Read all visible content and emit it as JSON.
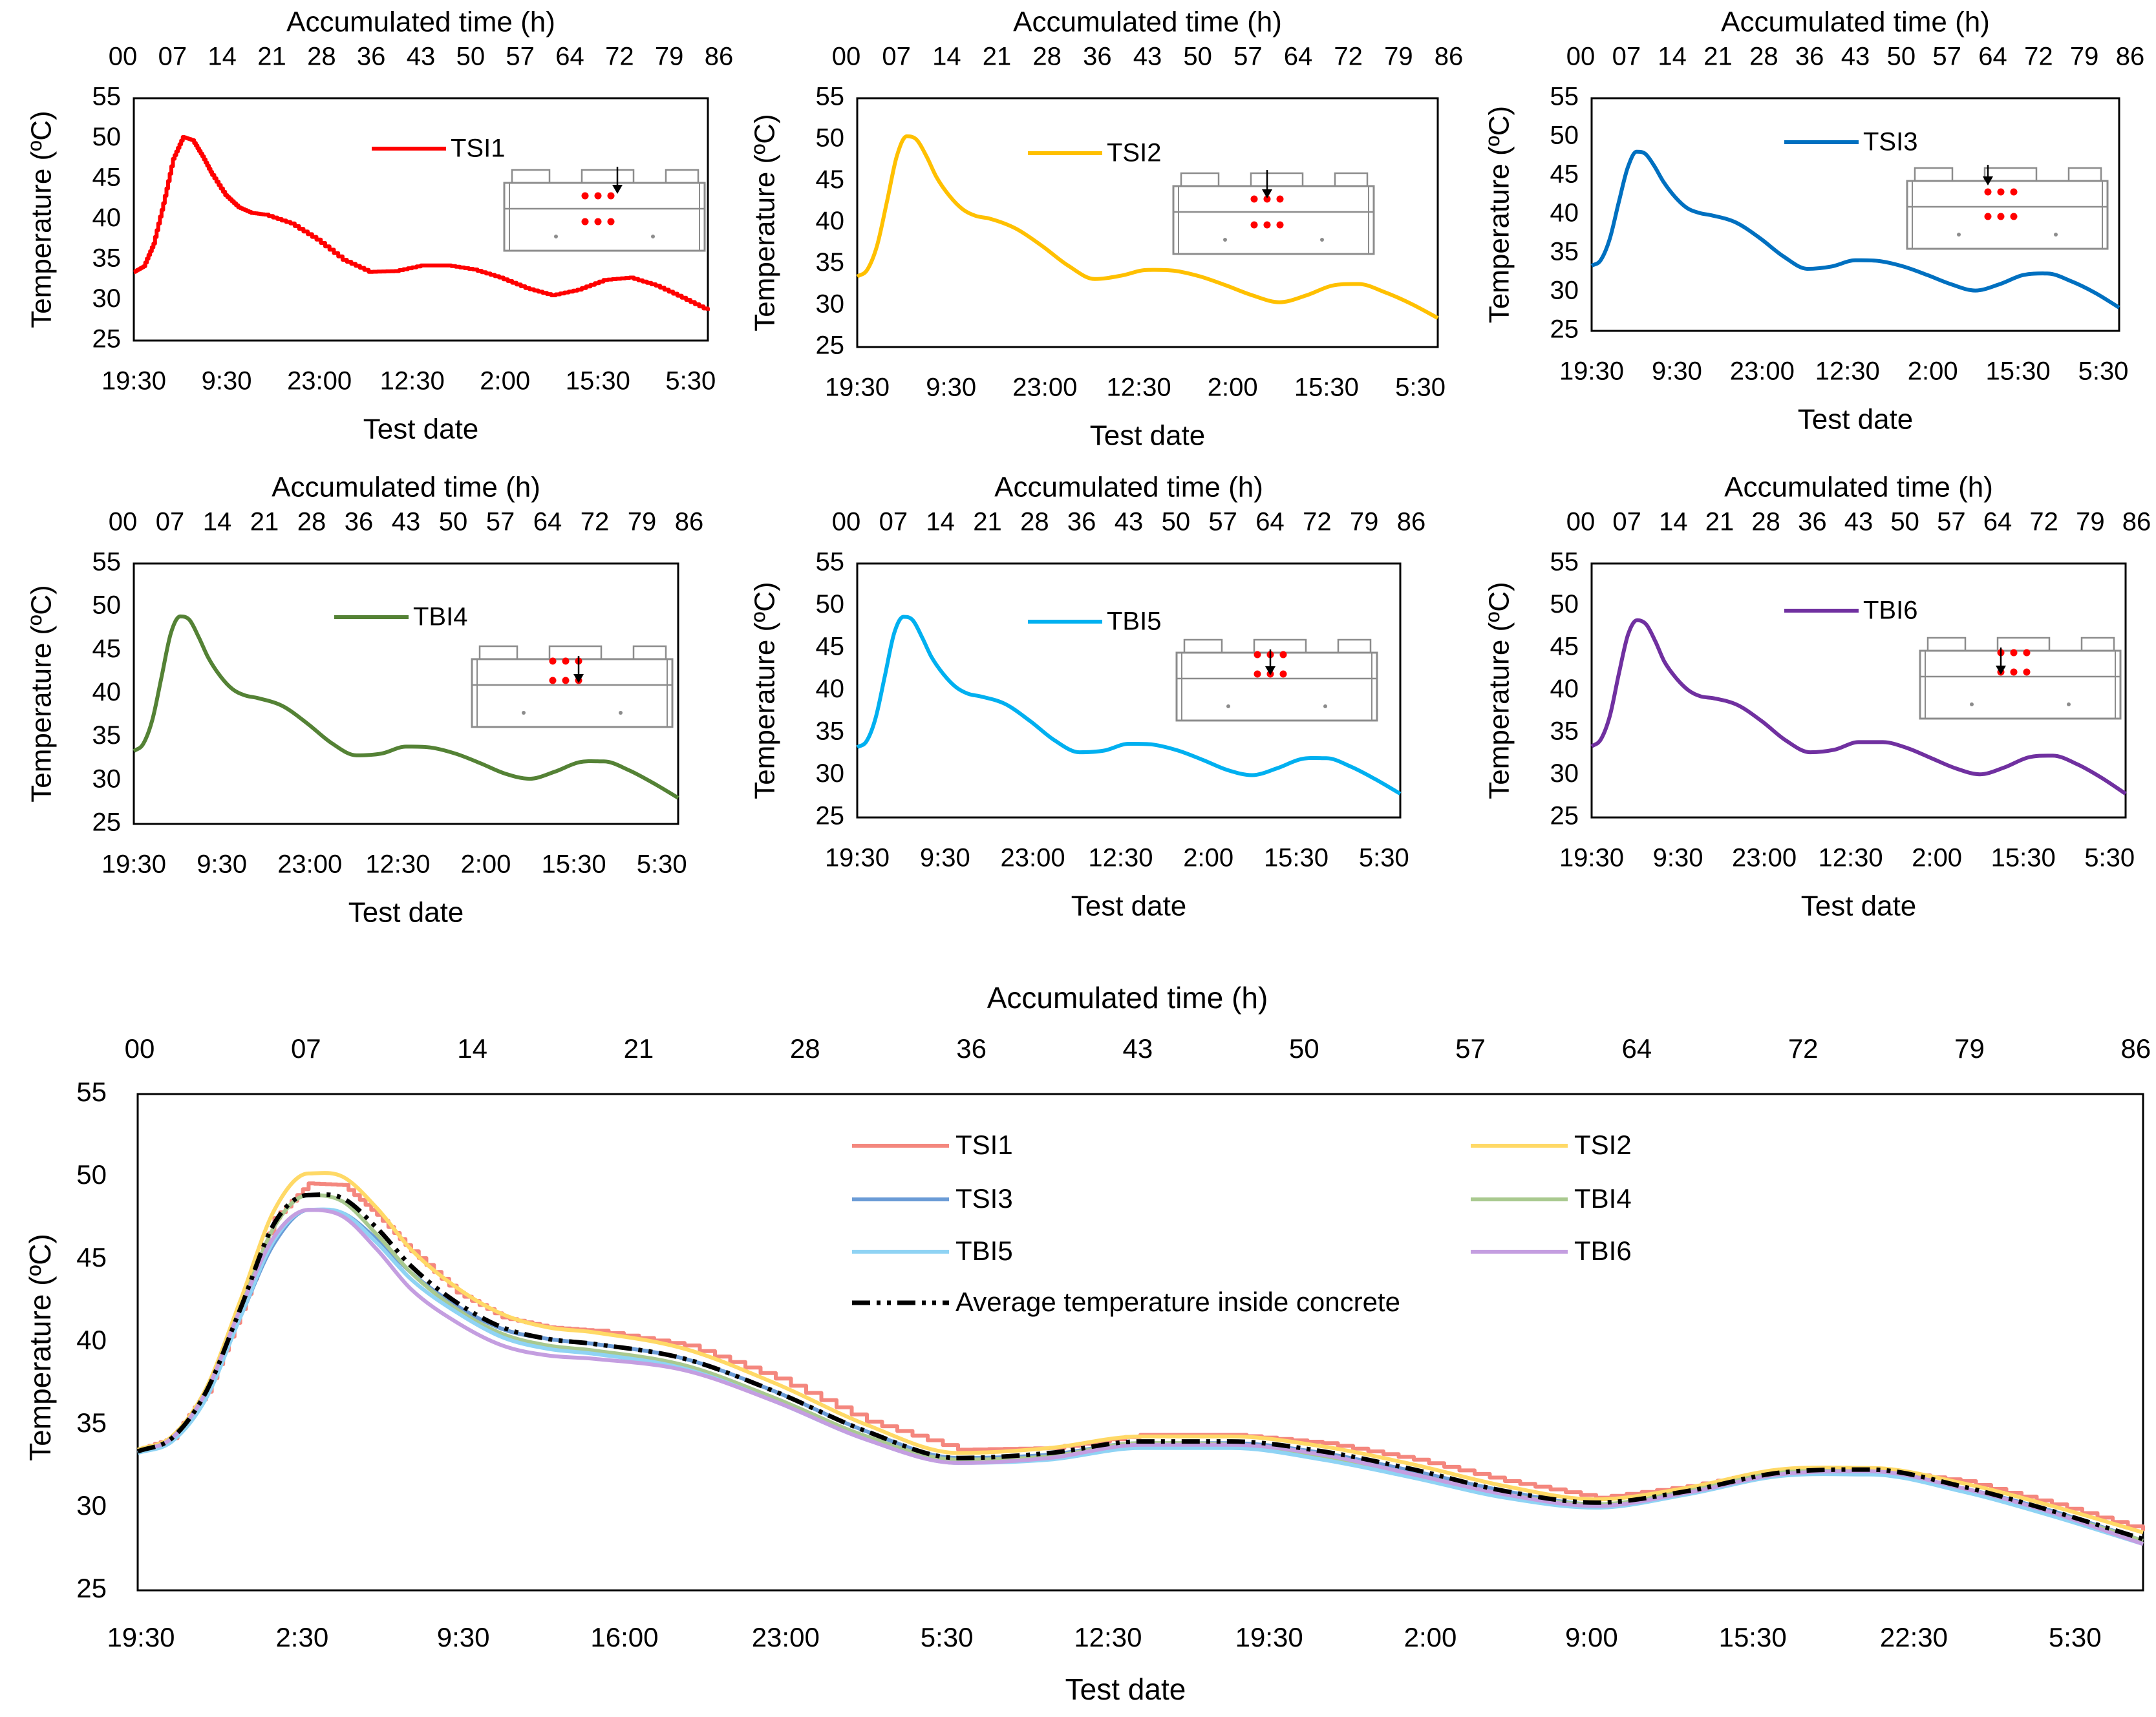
{
  "small_panel_labels": {
    "top_axis": "Accumulated time (h)",
    "y_axis": "Temperature (ºC)",
    "x_axis": "Test date"
  },
  "chart_data": [
    {
      "type": "line",
      "id": "p1",
      "legend": "TSI1",
      "color": "#ff0000",
      "stepped": true,
      "ylim": [
        25,
        55
      ],
      "yticks": [
        25,
        30,
        35,
        40,
        45,
        50,
        55
      ],
      "top_ticks": [
        "00",
        "07",
        "14",
        "21",
        "28",
        "36",
        "43",
        "50",
        "57",
        "64",
        "72",
        "79",
        "86"
      ],
      "bottom_ticks": [
        "19:30",
        "9:30",
        "23:00",
        "12:30",
        "2:00",
        "15:30",
        "5:30"
      ],
      "x": [
        0,
        1.5,
        3,
        4.5,
        6,
        7.5,
        9,
        10.5,
        12,
        14,
        16,
        18,
        20,
        24,
        28,
        32,
        36,
        40,
        44,
        48,
        52,
        56,
        60,
        64,
        68,
        72,
        76,
        80,
        84,
        88
      ],
      "y": [
        33.5,
        34.2,
        37,
        42,
        47.5,
        50.2,
        49.8,
        47.8,
        45.5,
        43,
        41.5,
        40.8,
        40.6,
        39.5,
        37.5,
        35,
        33.5,
        33.6,
        34.3,
        34.3,
        33.8,
        32.8,
        31.5,
        30.6,
        31.3,
        32.5,
        32.8,
        31.8,
        30.3,
        28.7
      ]
    },
    {
      "type": "line",
      "id": "p2",
      "legend": "TSI2",
      "color": "#ffc000",
      "ylim": [
        25,
        55
      ],
      "yticks": [
        25,
        30,
        35,
        40,
        45,
        50,
        55
      ],
      "top_ticks": [
        "00",
        "07",
        "14",
        "21",
        "28",
        "36",
        "43",
        "50",
        "57",
        "64",
        "72",
        "79",
        "86"
      ],
      "bottom_ticks": [
        "19:30",
        "9:30",
        "23:00",
        "12:30",
        "2:00",
        "15:30",
        "5:30"
      ],
      "x": [
        0,
        1.5,
        3,
        4.5,
        6,
        7.5,
        9,
        10.5,
        12,
        14,
        16,
        18,
        20,
        24,
        28,
        32,
        36,
        40,
        44,
        48,
        52,
        56,
        60,
        64,
        68,
        72,
        76,
        80,
        84,
        88
      ],
      "y": [
        33.5,
        34.3,
        37.2,
        42.5,
        48,
        50.4,
        50,
        48,
        45.5,
        43.2,
        41.6,
        40.8,
        40.5,
        39.3,
        37.2,
        34.8,
        33.2,
        33.6,
        34.3,
        34.2,
        33.5,
        32.4,
        31.2,
        30.4,
        31.2,
        32.4,
        32.6,
        31.6,
        30.2,
        28.5
      ]
    },
    {
      "type": "line",
      "id": "p3",
      "legend": "TSI3",
      "color": "#0070c0",
      "ylim": [
        25,
        55
      ],
      "yticks": [
        25,
        30,
        35,
        40,
        45,
        50,
        55
      ],
      "top_ticks": [
        "00",
        "07",
        "14",
        "21",
        "28",
        "36",
        "43",
        "50",
        "57",
        "64",
        "72",
        "79",
        "86"
      ],
      "bottom_ticks": [
        "19:30",
        "9:30",
        "23:00",
        "12:30",
        "2:00",
        "15:30",
        "5:30"
      ],
      "x": [
        0,
        1.5,
        3,
        4.5,
        6,
        7.5,
        9,
        10.5,
        12,
        14,
        16,
        18,
        20,
        24,
        28,
        32,
        36,
        40,
        44,
        48,
        52,
        56,
        60,
        64,
        68,
        72,
        76,
        80,
        84,
        88
      ],
      "y": [
        33.4,
        34.1,
        36.8,
        41.5,
        46,
        48.1,
        47.8,
        46.2,
        44.2,
        42.2,
        40.8,
        40.2,
        39.9,
        39,
        37,
        34.6,
        33,
        33.3,
        34.1,
        34,
        33.3,
        32.2,
        31,
        30.2,
        31,
        32.2,
        32.4,
        31.4,
        29.9,
        28
      ]
    },
    {
      "type": "line",
      "id": "p4",
      "legend": "TBI4",
      "color": "#548235",
      "ylim": [
        25,
        55
      ],
      "yticks": [
        25,
        30,
        35,
        40,
        45,
        50,
        55
      ],
      "top_ticks": [
        "00",
        "07",
        "14",
        "21",
        "28",
        "36",
        "43",
        "50",
        "57",
        "64",
        "72",
        "79",
        "86"
      ],
      "bottom_ticks": [
        "19:30",
        "9:30",
        "23:00",
        "12:30",
        "2:00",
        "15:30",
        "5:30"
      ],
      "x": [
        0,
        1.5,
        3,
        4.5,
        6,
        7.5,
        9,
        10.5,
        12,
        14,
        16,
        18,
        20,
        24,
        28,
        32,
        36,
        40,
        44,
        48,
        52,
        56,
        60,
        64,
        68,
        72,
        76,
        80,
        84,
        88
      ],
      "y": [
        33.4,
        34.2,
        37,
        42,
        47,
        48.9,
        48.5,
        46.5,
        44.2,
        42,
        40.5,
        39.8,
        39.5,
        38.6,
        36.6,
        34.3,
        32.9,
        33.1,
        33.9,
        33.8,
        33.1,
        32,
        30.8,
        30.2,
        31,
        32.1,
        32.2,
        31.2,
        29.7,
        28
      ]
    },
    {
      "type": "line",
      "id": "p5",
      "legend": "TBI5",
      "color": "#00b0f0",
      "ylim": [
        25,
        55
      ],
      "yticks": [
        25,
        30,
        35,
        40,
        45,
        50,
        55
      ],
      "top_ticks": [
        "00",
        "07",
        "14",
        "21",
        "28",
        "36",
        "43",
        "50",
        "57",
        "64",
        "72",
        "79",
        "86"
      ],
      "bottom_ticks": [
        "19:30",
        "9:30",
        "23:00",
        "12:30",
        "2:00",
        "15:30",
        "5:30"
      ],
      "x": [
        0,
        1.5,
        3,
        4.5,
        6,
        7.5,
        9,
        10.5,
        12,
        14,
        16,
        18,
        20,
        24,
        28,
        32,
        36,
        40,
        44,
        48,
        52,
        56,
        60,
        64,
        68,
        72,
        76,
        80,
        84,
        88
      ],
      "y": [
        33.3,
        34,
        36.8,
        41.8,
        46.8,
        48.7,
        48.3,
        46.3,
        44,
        41.9,
        40.4,
        39.6,
        39.3,
        38.4,
        36.4,
        34.1,
        32.7,
        32.9,
        33.7,
        33.6,
        32.9,
        31.8,
        30.6,
        30,
        30.8,
        31.9,
        32,
        31,
        29.5,
        27.8
      ]
    },
    {
      "type": "line",
      "id": "p6",
      "legend": "TBI6",
      "color": "#7030a0",
      "ylim": [
        25,
        55
      ],
      "yticks": [
        25,
        30,
        35,
        40,
        45,
        50,
        55
      ],
      "top_ticks": [
        "00",
        "07",
        "14",
        "21",
        "28",
        "36",
        "43",
        "50",
        "57",
        "64",
        "72",
        "79",
        "86"
      ],
      "bottom_ticks": [
        "19:30",
        "9:30",
        "23:00",
        "12:30",
        "2:00",
        "15:30",
        "5:30"
      ],
      "x": [
        0,
        1.5,
        3,
        4.5,
        6,
        7.5,
        9,
        10.5,
        12,
        14,
        16,
        18,
        20,
        24,
        28,
        32,
        36,
        40,
        44,
        48,
        52,
        56,
        60,
        64,
        68,
        72,
        76,
        80,
        84,
        88
      ],
      "y": [
        33.4,
        34.2,
        37,
        42,
        46.6,
        48.3,
        47.8,
        45.8,
        43.4,
        41.4,
        40,
        39.3,
        39.1,
        38.3,
        36.4,
        34.1,
        32.7,
        33,
        33.9,
        33.9,
        33.2,
        32,
        30.8,
        30.1,
        30.9,
        32.1,
        32.3,
        31.3,
        29.7,
        27.8
      ]
    },
    {
      "type": "line",
      "id": "combined",
      "title": "Accumulated time (h)",
      "xlabel": "Test date",
      "ylabel": "Temperature (ºC)",
      "ylim": [
        25,
        55
      ],
      "yticks": [
        25,
        30,
        35,
        40,
        45,
        50,
        55
      ],
      "top_ticks": [
        "00",
        "07",
        "14",
        "21",
        "28",
        "36",
        "43",
        "50",
        "57",
        "64",
        "72",
        "79",
        "86"
      ],
      "bottom_ticks": [
        "19:30",
        "2:30",
        "9:30",
        "16:00",
        "23:00",
        "5:30",
        "12:30",
        "19:30",
        "2:00",
        "9:00",
        "15:30",
        "22:30",
        "5:30"
      ],
      "x": [
        0,
        1.5,
        3,
        4.5,
        6,
        7.5,
        9,
        10.5,
        12,
        14,
        16,
        18,
        20,
        24,
        28,
        32,
        36,
        40,
        44,
        48,
        52,
        56,
        60,
        64,
        68,
        72,
        76,
        80,
        84,
        88
      ],
      "series": [
        {
          "name": "TSI1",
          "color": "#f4877e",
          "stepped": true,
          "values": [
            33.5,
            34.2,
            37,
            42,
            47.5,
            49.6,
            49.5,
            47.7,
            45.5,
            43,
            41.5,
            40.9,
            40.7,
            39.8,
            37.8,
            35.2,
            33.5,
            33.6,
            34.4,
            34.4,
            33.9,
            32.9,
            31.6,
            30.6,
            31.3,
            32.3,
            32.3,
            31.6,
            30.2,
            28.6
          ]
        },
        {
          "name": "TSI2",
          "color": "#ffd966",
          "values": [
            33.5,
            34.3,
            37.2,
            42.5,
            48,
            50.2,
            50,
            48.1,
            45.6,
            43.3,
            41.7,
            40.9,
            40.6,
            39.6,
            37.5,
            35,
            33.3,
            33.6,
            34.3,
            34.3,
            33.7,
            32.6,
            31.3,
            30.5,
            31.2,
            32.3,
            32.4,
            31.5,
            30.1,
            28.5
          ]
        },
        {
          "name": "TSI3",
          "color": "#6a9bd6",
          "values": [
            33.4,
            34.1,
            36.8,
            41.5,
            46,
            48,
            47.8,
            46.2,
            44.2,
            42.2,
            40.8,
            40.2,
            39.9,
            39,
            37,
            34.6,
            33,
            33.2,
            33.9,
            33.9,
            33.3,
            32.2,
            31,
            30.2,
            30.9,
            32,
            32.1,
            31.2,
            29.8,
            28
          ]
        },
        {
          "name": "TBI4",
          "color": "#a9c98f",
          "values": [
            33.4,
            34.2,
            37,
            42,
            47,
            48.9,
            48.5,
            46.5,
            44.2,
            42,
            40.5,
            39.8,
            39.5,
            38.6,
            36.6,
            34.3,
            32.9,
            33.1,
            33.9,
            33.8,
            33.1,
            32,
            30.8,
            30.2,
            31,
            32.1,
            32.2,
            31.2,
            29.7,
            28
          ]
        },
        {
          "name": "TBI5",
          "color": "#8fd3f4",
          "values": [
            33.3,
            34,
            36.6,
            41.5,
            46.2,
            48,
            47.8,
            46,
            43.8,
            41.8,
            40.3,
            39.6,
            39.3,
            38.4,
            36.4,
            34.1,
            32.7,
            32.9,
            33.6,
            33.6,
            32.9,
            31.8,
            30.6,
            30,
            30.8,
            31.9,
            32,
            31,
            29.5,
            27.8
          ]
        },
        {
          "name": "TBI6",
          "color": "#c49ee0",
          "values": [
            33.4,
            34.2,
            37,
            42,
            46.4,
            48,
            47.6,
            45.6,
            43.2,
            41.2,
            39.8,
            39.2,
            39,
            38.3,
            36.4,
            34.1,
            32.7,
            33,
            33.8,
            33.8,
            33.2,
            32,
            30.8,
            30.1,
            30.9,
            32,
            32.2,
            31.2,
            29.7,
            27.8
          ]
        },
        {
          "name": "Average temperature inside concrete",
          "color": "#000000",
          "dashed": true,
          "values": [
            33.4,
            34.2,
            37,
            42,
            47.2,
            48.9,
            48.7,
            46.9,
            44.6,
            42.4,
            40.9,
            40.2,
            39.9,
            39,
            37,
            34.6,
            33,
            33.3,
            34,
            34,
            33.4,
            32.3,
            31,
            30.3,
            31,
            32.1,
            32.3,
            31.3,
            29.8,
            28.1
          ]
        }
      ]
    }
  ]
}
